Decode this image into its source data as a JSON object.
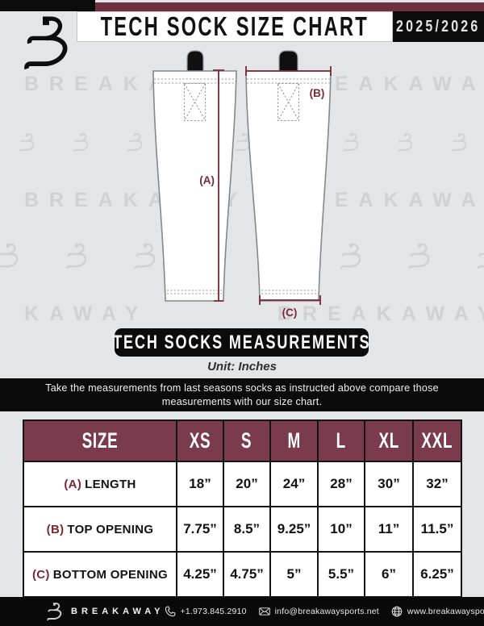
{
  "header": {
    "title": "TECH SOCK SIZE CHART",
    "season": "2025/2026"
  },
  "watermark": {
    "rows": [
      "BREAKAWAY BREAKAWAY",
      "BREAKAWAY BREAKAWAY",
      "KAWAY BREAKAWAY"
    ]
  },
  "diagram": {
    "label_a": "(A)",
    "label_b": "(B)",
    "label_c": "(C)"
  },
  "measurements": {
    "banner": "TECH SOCKS MEASUREMENTS",
    "unit": "Unit: Inches"
  },
  "instruction": {
    "line1": "Take the measurements from last seasons socks as instructed above compare those",
    "line2": "measurements  with our size chart."
  },
  "table": {
    "columns": [
      "SIZE",
      "XS",
      "S",
      "M",
      "L",
      "XL",
      "XXL"
    ],
    "rows": [
      {
        "prefix": "(A)",
        "label": "LENGTH",
        "values": [
          "18”",
          "20”",
          "24”",
          "28”",
          "30”",
          "32”"
        ]
      },
      {
        "prefix": "(B)",
        "label": "TOP OPENING",
        "values": [
          "7.75”",
          "8.5”",
          "9.25”",
          "10”",
          "11”",
          "11.5”"
        ]
      },
      {
        "prefix": "(C)",
        "label": "BOTTOM OPENING",
        "values": [
          "4.25”",
          "4.75”",
          "5”",
          "5.5”",
          "6”",
          "6.25”"
        ]
      }
    ]
  },
  "footer": {
    "brand": "BREAKAWAY",
    "phone": "+1.973.845.2910",
    "email": "info@breakawaysports.net",
    "website": "www.breakawaysports.net"
  },
  "colors": {
    "background": "#E4E5E7",
    "maroon_strip": "#6E2F40",
    "table_header_maroon": "#7A3B4D",
    "annotation_maroon": "#7A2838",
    "black": "#0C0C0C",
    "watermark_gray": "#CFD2D5"
  }
}
